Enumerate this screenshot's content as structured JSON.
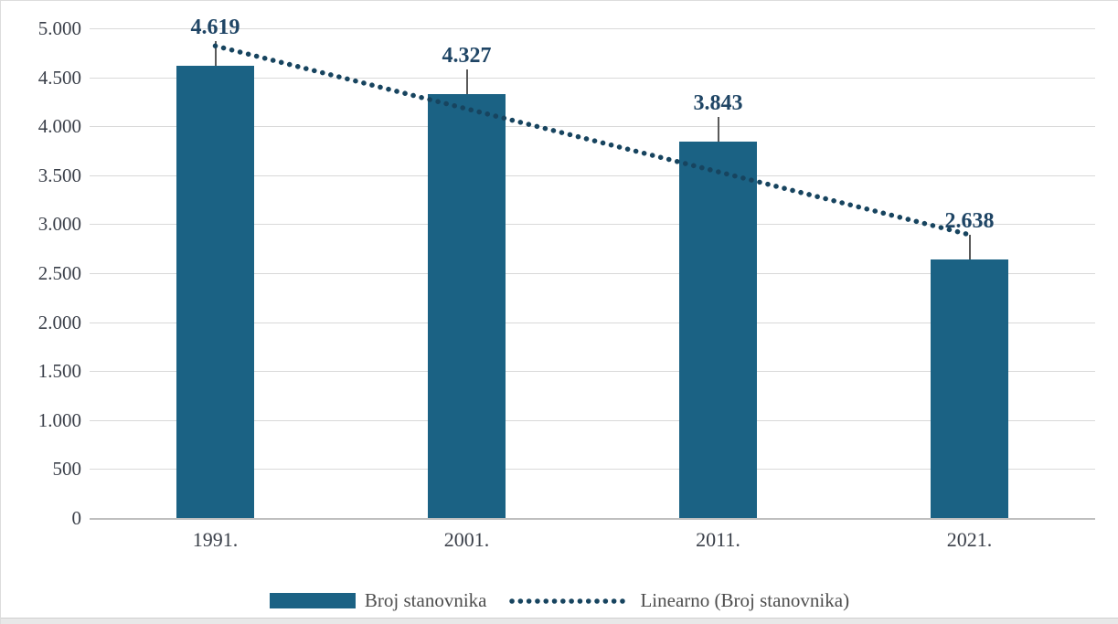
{
  "chart_data": {
    "type": "bar",
    "title": "",
    "xlabel": "",
    "ylabel": "",
    "categories": [
      "1991.",
      "2001.",
      "2011.",
      "2021."
    ],
    "series": [
      {
        "name": "Broj stanovnika",
        "type": "bar",
        "values": [
          4619,
          4327,
          3843,
          2638
        ],
        "value_labels": [
          "4.619",
          "4.327",
          "3.843",
          "2.638"
        ],
        "color": "#1B6284"
      },
      {
        "name": "Linearno (Broj stanovnika)",
        "type": "linear-trendline",
        "of_series": "Broj stanovnika",
        "style": "dotted",
        "color": "#17445F"
      }
    ],
    "ylim": [
      0,
      5000
    ],
    "ytick_step": 500,
    "yticks": [
      {
        "value": 0,
        "label": "0"
      },
      {
        "value": 500,
        "label": "500"
      },
      {
        "value": 1000,
        "label": "1.000"
      },
      {
        "value": 1500,
        "label": "1.500"
      },
      {
        "value": 2000,
        "label": "2.000"
      },
      {
        "value": 2500,
        "label": "2.500"
      },
      {
        "value": 3000,
        "label": "3.000"
      },
      {
        "value": 3500,
        "label": "3.500"
      },
      {
        "value": 4000,
        "label": "4.000"
      },
      {
        "value": 4500,
        "label": "4.500"
      },
      {
        "value": 5000,
        "label": "5.000"
      }
    ],
    "grid": "horizontal",
    "legend_position": "bottom"
  },
  "colors": {
    "bar": "#1B6284",
    "trendline": "#17445F",
    "data_label": "#1F4565",
    "axis_text": "#3A3F49",
    "legend_text": "#4D4D4D",
    "gridline": "#D9D9D9",
    "axis_line": "#BFBFBF",
    "leader_line": "#595959",
    "background": "#FFFFFF",
    "window_edge": "#E8E8E8"
  }
}
